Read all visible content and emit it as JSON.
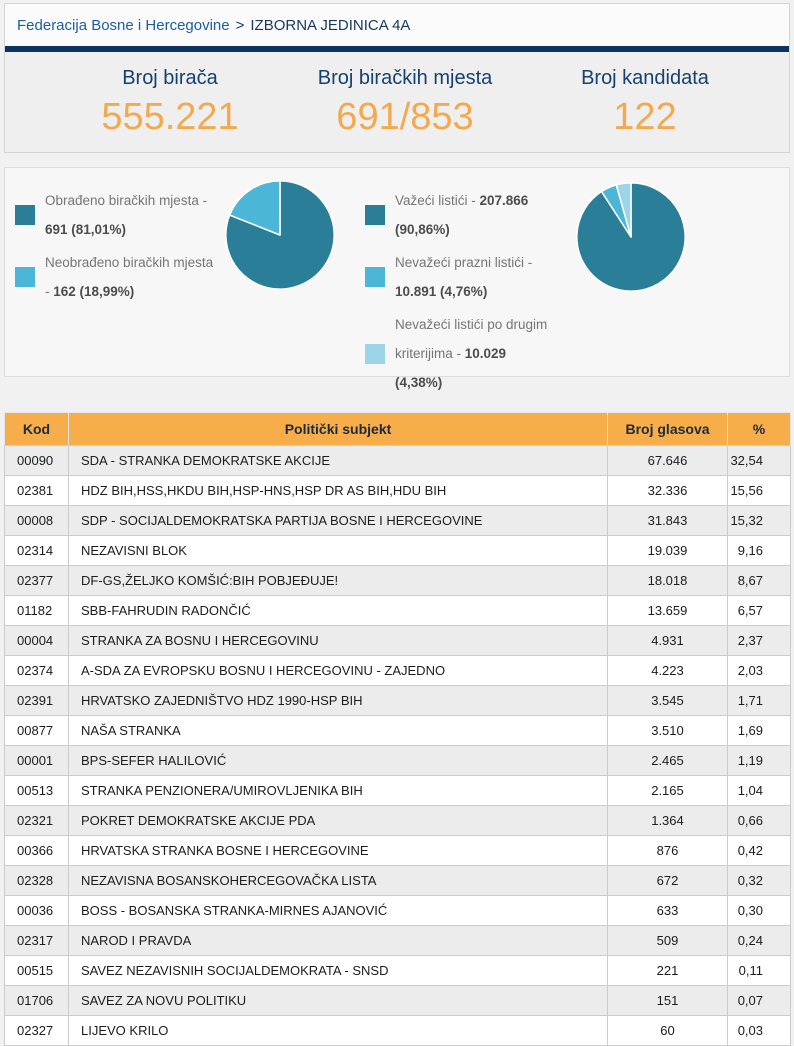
{
  "breadcrumb": {
    "parent": "Federacija Bosne i Hercegovine",
    "separator": ">",
    "current": "IZBORNA JEDINICA 4A"
  },
  "stats": [
    {
      "label": "Broj birača",
      "value": "555.221"
    },
    {
      "label": "Broj biračkih mjesta",
      "value": "691/853"
    },
    {
      "label": "Broj kandidata",
      "value": "122"
    }
  ],
  "colors": {
    "accent_orange": "#f7ad4a",
    "stat_value_orange": "#f5a94e",
    "navy": "#0d3461",
    "link_blue": "#1e5ca3",
    "pie_dark": "#2a7e98",
    "pie_medium": "#4cb6d8",
    "pie_light": "#9cd5e8"
  },
  "chart_data": [
    {
      "type": "pie",
      "legend_position": "left",
      "slices": [
        {
          "label": "Obrađeno biračkih mjesta -",
          "value": 691,
          "pct": 81.01,
          "value_text": "691 (81,01%)",
          "color": "#2a7e98"
        },
        {
          "label": "Neobrađeno biračkih mjesta -",
          "value": 162,
          "pct": 18.99,
          "value_text": "162 (18,99%)",
          "color": "#4cb6d8"
        }
      ]
    },
    {
      "type": "pie",
      "legend_position": "left",
      "slices": [
        {
          "label": "Važeći listići -",
          "value": 207866,
          "pct": 90.86,
          "value_text": "207.866 (90,86%)",
          "color": "#2a7e98"
        },
        {
          "label": "Nevažeći prazni listići -",
          "value": 10891,
          "pct": 4.76,
          "value_text": "10.891 (4,76%)",
          "color": "#4cb6d8"
        },
        {
          "label": "Nevažeći listići po drugim kriterijima -",
          "value": 10029,
          "pct": 4.38,
          "value_text": "10.029 (4,38%)",
          "color": "#9cd5e8"
        }
      ]
    }
  ],
  "table": {
    "headers": [
      "Kod",
      "Politički subjekt",
      "Broj glasova",
      "%"
    ],
    "rows": [
      [
        "00090",
        "SDA - STRANKA DEMOKRATSKE AKCIJE",
        "67.646",
        "32,54"
      ],
      [
        "02381",
        "HDZ BIH,HSS,HKDU BIH,HSP-HNS,HSP DR AS BIH,HDU BIH",
        "32.336",
        "15,56"
      ],
      [
        "00008",
        "SDP - SOCIJALDEMOKRATSKA PARTIJA BOSNE I HERCEGOVINE",
        "31.843",
        "15,32"
      ],
      [
        "02314",
        "NEZAVISNI BLOK",
        "19.039",
        "9,16"
      ],
      [
        "02377",
        "DF-GS,ŽELJKO KOMŠIĆ:BIH POBJEĐUJE!",
        "18.018",
        "8,67"
      ],
      [
        "01182",
        "SBB-FAHRUDIN RADONČIĆ",
        "13.659",
        "6,57"
      ],
      [
        "00004",
        "STRANKA ZA BOSNU I HERCEGOVINU",
        "4.931",
        "2,37"
      ],
      [
        "02374",
        "A-SDA ZA EVROPSKU BOSNU I HERCEGOVINU - ZAJEDNO",
        "4.223",
        "2,03"
      ],
      [
        "02391",
        "HRVATSKO ZAJEDNIŠTVO HDZ 1990-HSP BIH",
        "3.545",
        "1,71"
      ],
      [
        "00877",
        "NAŠA STRANKA",
        "3.510",
        "1,69"
      ],
      [
        "00001",
        "BPS-SEFER HALILOVIĆ",
        "2.465",
        "1,19"
      ],
      [
        "00513",
        "STRANKA PENZIONERA/UMIROVLJENIKA BIH",
        "2.165",
        "1,04"
      ],
      [
        "02321",
        "POKRET DEMOKRATSKE AKCIJE PDA",
        "1.364",
        "0,66"
      ],
      [
        "00366",
        "HRVATSKA STRANKA BOSNE I HERCEGOVINE",
        "876",
        "0,42"
      ],
      [
        "02328",
        "NEZAVISNA BOSANSKOHERCEGOVAČKA LISTA",
        "672",
        "0,32"
      ],
      [
        "00036",
        "BOSS - BOSANSKA STRANKA-MIRNES AJANOVIĆ",
        "633",
        "0,30"
      ],
      [
        "02317",
        "NAROD I PRAVDA",
        "509",
        "0,24"
      ],
      [
        "00515",
        "SAVEZ NEZAVISNIH SOCIJALDEMOKRATA - SNSD",
        "221",
        "0,11"
      ],
      [
        "01706",
        "SAVEZ ZA NOVU POLITIKU",
        "151",
        "0,07"
      ],
      [
        "02327",
        "LIJEVO KRILO",
        "60",
        "0,03"
      ]
    ]
  }
}
